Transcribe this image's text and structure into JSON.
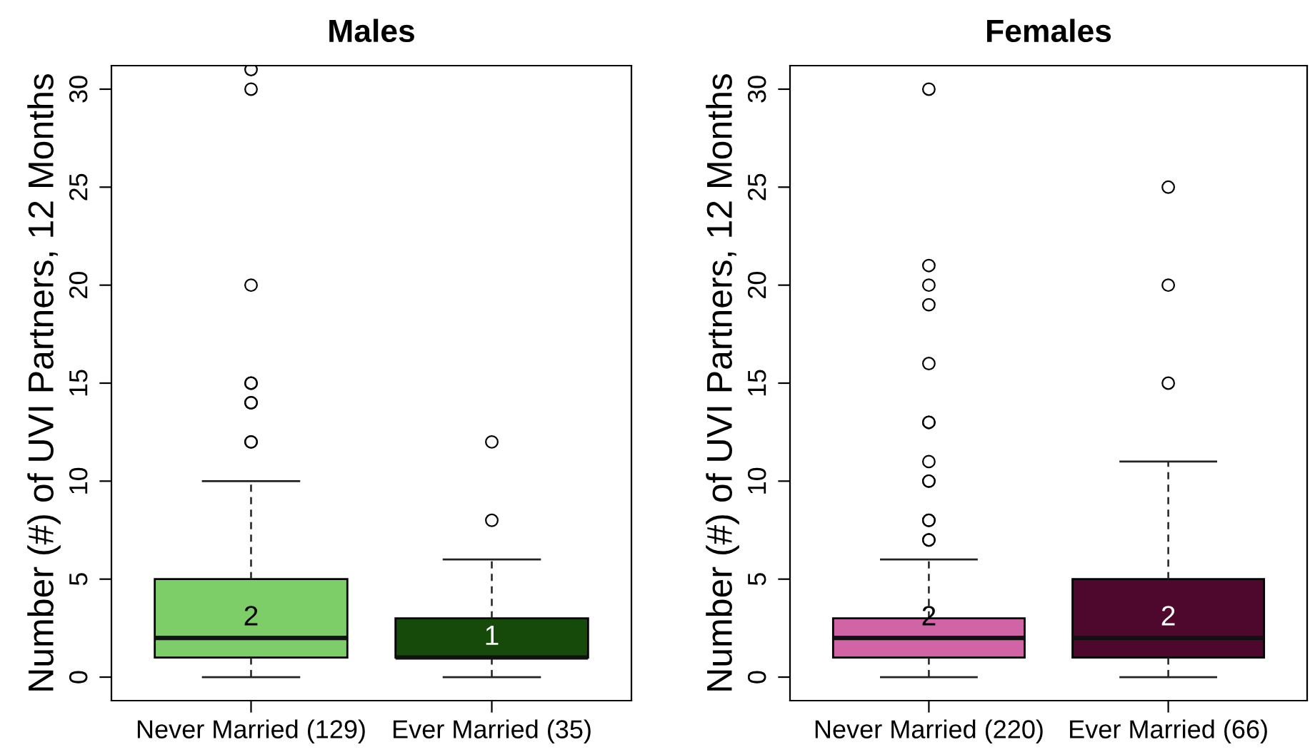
{
  "chart_data": [
    {
      "type": "box",
      "title": "Males",
      "ylabel": "Number (#) of UVI Partners, 12 Months",
      "categories": [
        "Never Married (129)",
        "Ever Married (35)"
      ],
      "colors": [
        "#7dce68",
        "#164a0a"
      ],
      "boxes": [
        {
          "low": 0,
          "q1": 1,
          "median": 2,
          "q3": 5,
          "high": 10,
          "outliers": [
            12,
            12,
            14,
            14,
            15,
            15,
            20,
            30,
            31
          ]
        },
        {
          "low": 0,
          "q1": 1,
          "median": 1,
          "q3": 3,
          "high": 6,
          "outliers": [
            8,
            12
          ]
        }
      ],
      "annotations": [
        {
          "text": "2",
          "x": "Never Married (129)",
          "y": 2
        },
        {
          "text": "1",
          "x": "Ever Married (35)",
          "y": 1
        }
      ],
      "ylim": [
        -1.2,
        31.2
      ],
      "yticks": [
        0,
        5,
        10,
        15,
        20,
        25,
        30
      ],
      "grid": false
    },
    {
      "type": "box",
      "title": "Females",
      "ylabel": "Number (#) of UVI Partners, 12 Months",
      "categories": [
        "Never Married (220)",
        "Ever Married (66)"
      ],
      "colors": [
        "#d064a4",
        "#4e082e"
      ],
      "boxes": [
        {
          "low": 0,
          "q1": 1,
          "median": 2,
          "q3": 3,
          "high": 6,
          "outliers": [
            7,
            7,
            8,
            8,
            10,
            10,
            11,
            13,
            13,
            16,
            19,
            20,
            21,
            30
          ]
        },
        {
          "low": 0,
          "q1": 1,
          "median": 2,
          "q3": 5,
          "high": 11,
          "outliers": [
            15,
            20,
            25
          ]
        }
      ],
      "annotations": [
        {
          "text": "2",
          "x": "Never Married (220)",
          "y": 2
        },
        {
          "text": "2",
          "x": "Ever Married (66)",
          "y": 2
        }
      ],
      "ylim": [
        -1.2,
        31.2
      ],
      "yticks": [
        0,
        5,
        10,
        15,
        20,
        25,
        30
      ],
      "grid": false
    }
  ]
}
